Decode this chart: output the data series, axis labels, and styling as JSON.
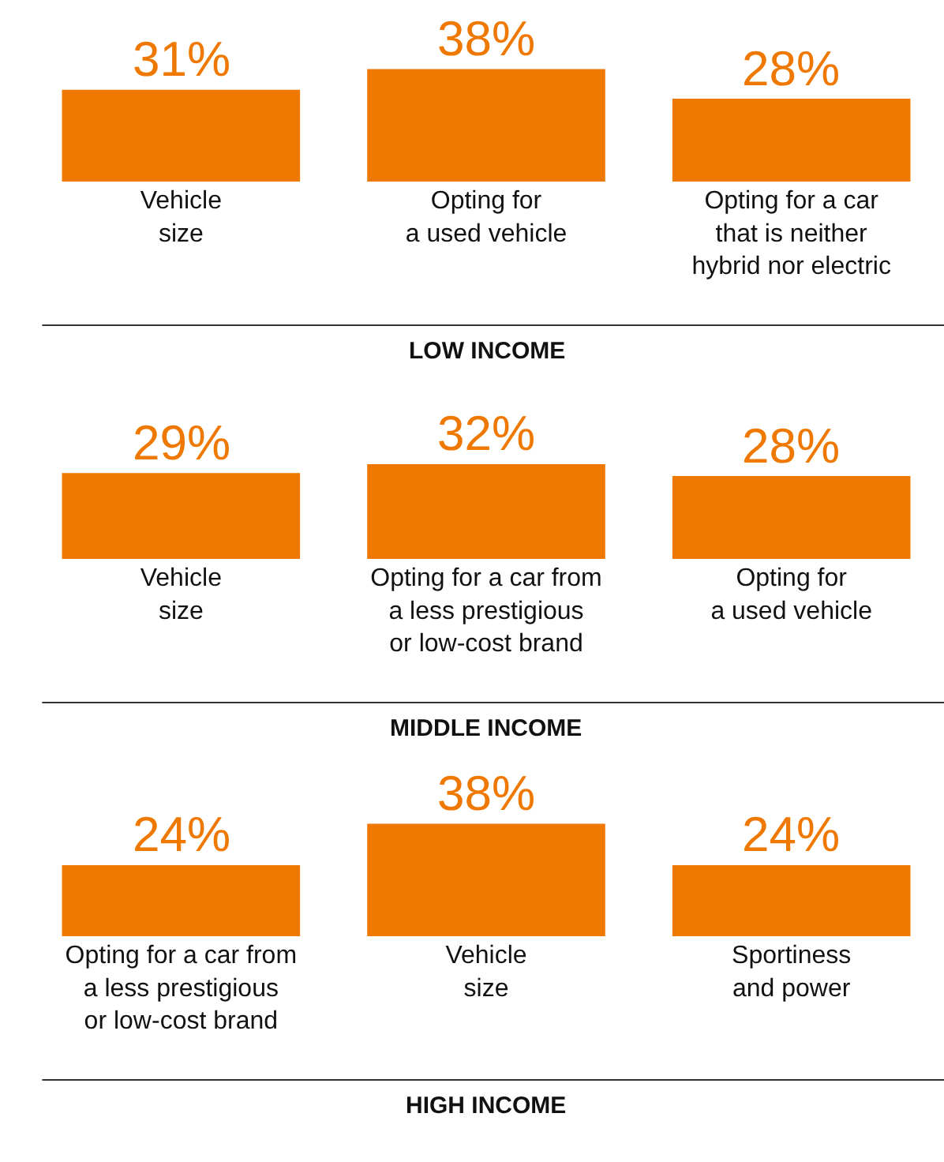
{
  "chart_data": [
    {
      "type": "bar",
      "xlabel": "LOW INCOME",
      "categories": [
        "Vehicle\nsize",
        "Opting for\na used vehicle",
        "Opting for a car\nthat is neither\nhybrid nor electric"
      ],
      "values": [
        31,
        38,
        28
      ],
      "value_labels": [
        "31%",
        "38%",
        "28%"
      ],
      "color": "#ef7800",
      "grid": false,
      "legend": false
    },
    {
      "type": "bar",
      "xlabel": "MIDDLE INCOME",
      "categories": [
        "Vehicle\nsize",
        "Opting for a car from\na less prestigious\nor low-cost brand",
        "Opting for\na used vehicle"
      ],
      "values": [
        29,
        32,
        28
      ],
      "value_labels": [
        "29%",
        "32%",
        "28%"
      ],
      "color": "#ef7800",
      "grid": false,
      "legend": false
    },
    {
      "type": "bar",
      "xlabel": "HIGH INCOME",
      "categories": [
        "Opting for a car from\na less prestigious\nor low-cost brand",
        "Vehicle\nsize",
        "Sportiness\nand power"
      ],
      "values": [
        24,
        38,
        24
      ],
      "value_labels": [
        "24%",
        "38%",
        "24%"
      ],
      "color": "#ef7800",
      "grid": false,
      "legend": false
    }
  ]
}
